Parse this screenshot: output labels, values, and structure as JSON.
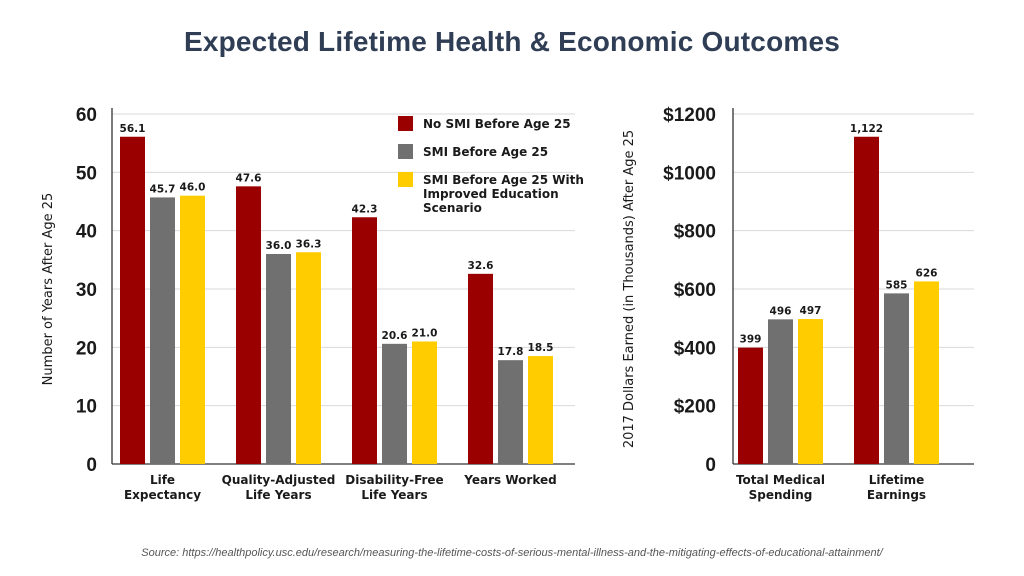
{
  "title": "Expected Lifetime Health & Economic Outcomes",
  "source": "Source: https://healthpolicy.usc.edu/research/measuring-the-lifetime-costs-of-serious-mental-illness-and-the-mitigating-effects-of-educational-attainment/",
  "colors": {
    "series": [
      "#9b0000",
      "#707070",
      "#ffcc00"
    ],
    "gridline": "#d9d9d9",
    "axis": "#333333"
  },
  "chart_data": [
    {
      "type": "bar",
      "categories": [
        [
          "Life",
          "Expectancy"
        ],
        [
          "Quality-Adjusted",
          "Life Years"
        ],
        [
          "Disability-Free",
          "Life Years"
        ],
        [
          "Years Worked"
        ]
      ],
      "series": [
        {
          "name": "No SMI Before Age 25",
          "values": [
            56.1,
            47.6,
            42.3,
            32.6
          ]
        },
        {
          "name": "SMI Before Age 25",
          "values": [
            45.7,
            36.0,
            20.6,
            17.8
          ]
        },
        {
          "name": [
            "SMI Before Age 25 With",
            "Improved Education",
            "Scenario"
          ],
          "values": [
            46.0,
            36.3,
            21.0,
            18.5
          ]
        }
      ],
      "value_labels": [
        [
          "56.1",
          "47.6",
          "42.3",
          "32.6"
        ],
        [
          "45.7",
          "36.0",
          "20.6",
          "17.8"
        ],
        [
          "46.0",
          "36.3",
          "21.0",
          "18.5"
        ]
      ],
      "ylabel": "Number of Years After Age 25",
      "ylim": [
        0,
        60
      ],
      "yticks": [
        0,
        10,
        20,
        30,
        40,
        50,
        60
      ],
      "ytick_labels": [
        "0",
        "10",
        "20",
        "30",
        "40",
        "50",
        "60"
      ],
      "legend": "top-right",
      "grid": true
    },
    {
      "type": "bar",
      "categories": [
        [
          "Total Medical",
          "Spending"
        ],
        [
          "Lifetime",
          "Earnings"
        ]
      ],
      "series": [
        {
          "values": [
            399,
            1122
          ]
        },
        {
          "values": [
            496,
            585
          ]
        },
        {
          "values": [
            497,
            626
          ]
        }
      ],
      "value_labels": [
        [
          "399",
          "1,122"
        ],
        [
          "496",
          "585"
        ],
        [
          "497",
          "626"
        ]
      ],
      "ylabel": "2017 Dollars Earned (in Thousands) After Age 25",
      "ylim": [
        0,
        1200
      ],
      "yticks": [
        0,
        200,
        400,
        600,
        800,
        1000,
        1200
      ],
      "ytick_labels": [
        "0",
        "$200",
        "$400",
        "$600",
        "$800",
        "$1000",
        "$1200"
      ],
      "grid": true
    }
  ]
}
